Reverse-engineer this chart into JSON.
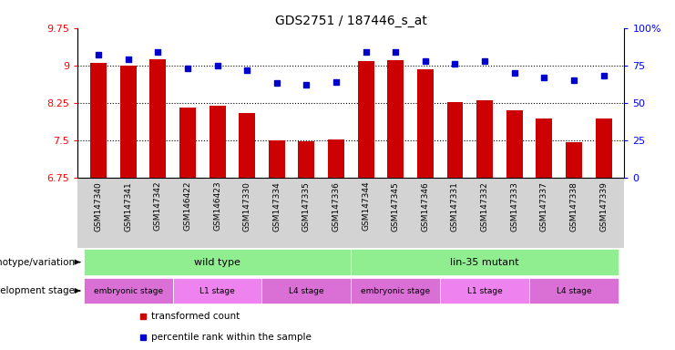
{
  "title": "GDS2751 / 187446_s_at",
  "samples": [
    "GSM147340",
    "GSM147341",
    "GSM147342",
    "GSM146422",
    "GSM146423",
    "GSM147330",
    "GSM147334",
    "GSM147335",
    "GSM147336",
    "GSM147344",
    "GSM147345",
    "GSM147346",
    "GSM147331",
    "GSM147332",
    "GSM147333",
    "GSM147337",
    "GSM147338",
    "GSM147339"
  ],
  "bar_values": [
    9.05,
    9.0,
    9.12,
    8.15,
    8.2,
    8.05,
    7.5,
    7.48,
    7.52,
    9.08,
    9.1,
    8.93,
    8.27,
    8.3,
    8.1,
    7.93,
    7.47,
    7.93
  ],
  "dot_values": [
    82,
    79,
    84,
    73,
    75,
    72,
    63,
    62,
    64,
    84,
    84,
    78,
    76,
    78,
    70,
    67,
    65,
    68
  ],
  "bar_color": "#cc0000",
  "dot_color": "#0000cc",
  "ylim_left": [
    6.75,
    9.75
  ],
  "ylim_right": [
    0,
    100
  ],
  "yticks_left": [
    6.75,
    7.5,
    8.25,
    9.0,
    9.75
  ],
  "yticks_right": [
    0,
    25,
    50,
    75,
    100
  ],
  "ytick_labels_left": [
    "6.75",
    "7.5",
    "8.25",
    "9",
    "9.75"
  ],
  "ytick_labels_right": [
    "0",
    "25",
    "50",
    "75",
    "100%"
  ],
  "hlines": [
    7.5,
    8.25,
    9.0
  ],
  "genotype_label": "genotype/variation",
  "stage_label": "development stage",
  "bg_color": "#ffffff",
  "tick_bg_color": "#d3d3d3",
  "wt_color": "#90ee90",
  "mutant_color": "#90ee90",
  "stage_colors": [
    "#da70d6",
    "#ee82ee",
    "#da70d6",
    "#da70d6",
    "#ee82ee",
    "#da70d6"
  ],
  "stage_labels": [
    "embryonic stage",
    "L1 stage",
    "L4 stage",
    "embryonic stage",
    "L1 stage",
    "L4 stage"
  ],
  "stage_ranges": [
    [
      0,
      3
    ],
    [
      3,
      6
    ],
    [
      6,
      9
    ],
    [
      9,
      12
    ],
    [
      12,
      15
    ],
    [
      15,
      18
    ]
  ],
  "legend_bar_label": "transformed count",
  "legend_dot_label": "percentile rank within the sample"
}
